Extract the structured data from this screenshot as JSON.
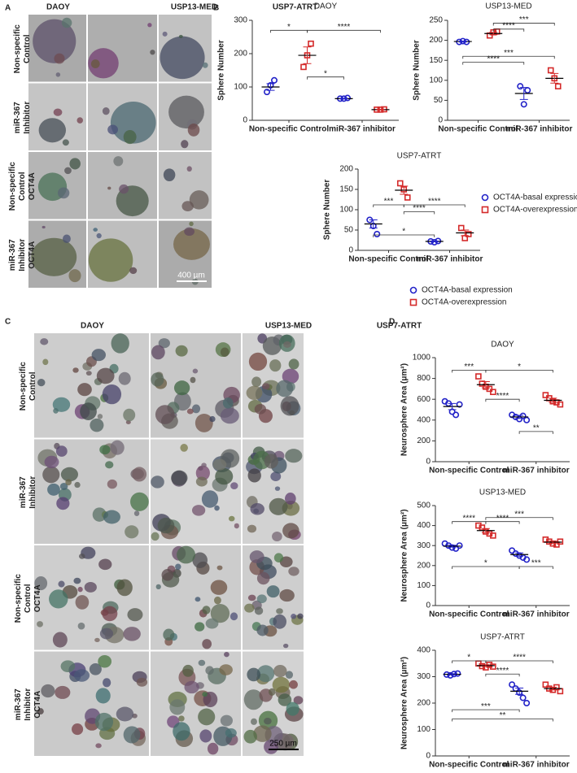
{
  "panel_labels": [
    "A",
    "B",
    "C",
    "D"
  ],
  "panel_a": {
    "columns": [
      "DAOY",
      "USP13-MED",
      "USP7-ATRT"
    ],
    "rows": [
      [
        "Non-specific",
        "Control"
      ],
      [
        "miR-367",
        "Inhibitor"
      ],
      [
        "Non-specific",
        "Control",
        "OCT4A"
      ],
      [
        "miR-367",
        "Inhibitor",
        "OCT4A"
      ]
    ],
    "scale_bar": "400 µm"
  },
  "panel_c": {
    "columns": [
      "DAOY",
      "USP13-MED",
      "USP7-ATRT"
    ],
    "rows": [
      [
        "Non-specific",
        "Control"
      ],
      [
        "miR-367",
        "Inhibitor"
      ],
      [
        "Non-specific",
        "Control",
        "OCT4A"
      ],
      [
        "miR-367",
        "Inhibitor",
        "OCT4A"
      ]
    ],
    "scale_bar": "250 µm"
  },
  "legend_b": [
    {
      "name": "OCT4A-basal expression",
      "color": "#2323c8",
      "marker": "circle"
    },
    {
      "name": "OCT4A-overexpression",
      "color": "#d42a2a",
      "marker": "square"
    }
  ],
  "legend_d": [
    {
      "name": "OCT4A-basal expression",
      "color": "#2323c8",
      "marker": "circle"
    },
    {
      "name": "OCT4A-overexpression",
      "color": "#d42a2a",
      "marker": "square"
    }
  ],
  "chart_data": [
    {
      "type": "dot",
      "title": "DAOY",
      "ylabel": "Sphere Number",
      "categories": [
        "Non-specific Control",
        "miR-367 inhibitor"
      ],
      "ylim": [
        0,
        300
      ],
      "yticks": [
        0,
        100,
        200,
        300
      ],
      "series": [
        {
          "color": "#2323c8",
          "marker": "circle",
          "values": [
            [
              85,
              105,
              120
            ],
            [
              65,
              65,
              67
            ]
          ],
          "means": [
            100,
            65
          ],
          "errors": [
            10,
            1
          ]
        },
        {
          "color": "#d42a2a",
          "marker": "square",
          "values": [
            [
              160,
              195,
              230
            ],
            [
              32,
              32,
              33
            ]
          ],
          "means": [
            195,
            32
          ],
          "errors": [
            25,
            1
          ]
        }
      ],
      "brackets": [
        {
          "label": "*",
          "y": 270,
          "from": 0,
          "to": 1
        },
        {
          "label": "****",
          "y": 270,
          "from": 1,
          "to": 3
        },
        {
          "label": "*",
          "y": 130,
          "from": 1,
          "to": 2
        }
      ]
    },
    {
      "type": "dot",
      "title": "USP13-MED",
      "ylabel": "Sphere Number",
      "categories": [
        "Non-specific Control",
        "miR-367 inhibitor"
      ],
      "ylim": [
        0,
        250
      ],
      "yticks": [
        0,
        50,
        100,
        150,
        200,
        250
      ],
      "series": [
        {
          "color": "#2323c8",
          "marker": "circle",
          "values": [
            [
              196,
              198,
              196
            ],
            [
              85,
              40,
              75
            ]
          ],
          "means": [
            197,
            67
          ],
          "errors": [
            1,
            15
          ]
        },
        {
          "color": "#d42a2a",
          "marker": "square",
          "values": [
            [
              212,
              220,
              222
            ],
            [
              125,
              105,
              85
            ]
          ],
          "means": [
            217,
            105
          ],
          "errors": [
            3,
            12
          ]
        }
      ],
      "brackets": [
        {
          "label": "***",
          "y": 243,
          "from": 1,
          "to": 3
        },
        {
          "label": "****",
          "y": 228,
          "from": 1,
          "to": 2
        },
        {
          "label": "****",
          "y": 145,
          "from": 0,
          "to": 2
        },
        {
          "label": "***",
          "y": 160,
          "from": 0,
          "to": 3
        }
      ]
    },
    {
      "type": "dot",
      "title": "USP7-ATRT",
      "ylabel": "Sphere Number",
      "categories": [
        "Non-specific Control",
        "miR-367 inhibitor"
      ],
      "ylim": [
        0,
        200
      ],
      "yticks": [
        0,
        50,
        100,
        150,
        200
      ],
      "series": [
        {
          "color": "#2323c8",
          "marker": "circle",
          "values": [
            [
              75,
              60,
              40
            ],
            [
              22,
              20,
              23
            ]
          ],
          "means": [
            65,
            22
          ],
          "errors": [
            10,
            1
          ]
        },
        {
          "color": "#d42a2a",
          "marker": "square",
          "values": [
            [
              165,
              150,
              130
            ],
            [
              55,
              30,
              40
            ]
          ],
          "means": [
            148,
            43
          ],
          "errors": [
            10,
            7
          ]
        }
      ],
      "brackets": [
        {
          "label": "***",
          "y": 112,
          "from": 0,
          "to": 1
        },
        {
          "label": "****",
          "y": 112,
          "from": 1,
          "to": 3
        },
        {
          "label": "****",
          "y": 95,
          "from": 1,
          "to": 2
        },
        {
          "label": "*",
          "y": 38,
          "from": 0,
          "to": 2
        }
      ]
    },
    {
      "type": "dot",
      "title": "DAOY",
      "ylabel": "Neurosphere Area (μm²)",
      "categories": [
        "Non-specific Control",
        "miR-367 inhibitor"
      ],
      "ylim": [
        0,
        1000
      ],
      "yticks": [
        0,
        200,
        400,
        600,
        800,
        1000
      ],
      "series": [
        {
          "color": "#2323c8",
          "marker": "circle",
          "values": [
            [
              580,
              560,
              480,
              450,
              550
            ],
            [
              450,
              430,
              410,
              440,
              400
            ]
          ],
          "means": [
            530,
            430
          ],
          "errors": [
            30,
            15
          ]
        },
        {
          "color": "#d42a2a",
          "marker": "square",
          "values": [
            [
              820,
              750,
              720,
              700,
              670
            ],
            [
              640,
              610,
              580,
              570,
              550
            ]
          ],
          "means": [
            740,
            590
          ],
          "errors": [
            30,
            20
          ]
        }
      ],
      "brackets": [
        {
          "label": "***",
          "y": 880,
          "from": 0,
          "to": 1
        },
        {
          "label": "*",
          "y": 880,
          "from": 1,
          "to": 3
        },
        {
          "label": "****",
          "y": 600,
          "from": 1,
          "to": 2
        },
        {
          "label": "**",
          "y": 290,
          "from": 2,
          "to": 3
        }
      ]
    },
    {
      "type": "dot",
      "title": "USP13-MED",
      "ylabel": "Neurosphere Area (μm²)",
      "categories": [
        "Non-specific Control",
        "miR-367 inhibitor"
      ],
      "ylim": [
        0,
        500
      ],
      "yticks": [
        0,
        100,
        200,
        300,
        400,
        500
      ],
      "series": [
        {
          "color": "#2323c8",
          "marker": "circle",
          "values": [
            [
              310,
              300,
              290,
              285,
              300
            ],
            [
              275,
              260,
              250,
              240,
              230
            ]
          ],
          "means": [
            297,
            255
          ],
          "errors": [
            5,
            8
          ]
        },
        {
          "color": "#d42a2a",
          "marker": "square",
          "values": [
            [
              400,
              390,
              370,
              360,
              350
            ],
            [
              330,
              320,
              310,
              305,
              320
            ]
          ],
          "means": [
            375,
            317
          ],
          "errors": [
            10,
            5
          ]
        }
      ],
      "brackets": [
        {
          "label": "****",
          "y": 420,
          "from": 0,
          "to": 1
        },
        {
          "label": "***",
          "y": 440,
          "from": 1,
          "to": 3
        },
        {
          "label": "****",
          "y": 420,
          "from": 1,
          "to": 2
        },
        {
          "label": "*",
          "y": 195,
          "from": 0,
          "to": 2
        },
        {
          "label": "***",
          "y": 195,
          "from": 2,
          "to": 3
        }
      ]
    },
    {
      "type": "dot",
      "title": "USP7-ATRT",
      "ylabel": "Neurosphere Area (μm²)",
      "categories": [
        "Non-specific Control",
        "miR-367 inhibitor"
      ],
      "ylim": [
        0,
        400
      ],
      "yticks": [
        0,
        100,
        200,
        300,
        400
      ],
      "series": [
        {
          "color": "#2323c8",
          "marker": "circle",
          "values": [
            [
              308,
              305,
              310,
              312
            ],
            [
              270,
              255,
              240,
              220,
              200
            ]
          ],
          "means": [
            309,
            245
          ],
          "errors": [
            2,
            12
          ]
        },
        {
          "color": "#d42a2a",
          "marker": "square",
          "values": [
            [
              350,
              340,
              335,
              345,
              338
            ],
            [
              270,
              255,
              250,
              260,
              245
            ]
          ],
          "means": [
            342,
            255
          ],
          "errors": [
            3,
            5
          ]
        }
      ],
      "brackets": [
        {
          "label": "*",
          "y": 360,
          "from": 0,
          "to": 1
        },
        {
          "label": "****",
          "y": 360,
          "from": 1,
          "to": 3
        },
        {
          "label": "****",
          "y": 310,
          "from": 1,
          "to": 2
        },
        {
          "label": "***",
          "y": 175,
          "from": 0,
          "to": 2
        },
        {
          "label": "**",
          "y": 140,
          "from": 0,
          "to": 3
        }
      ]
    }
  ]
}
